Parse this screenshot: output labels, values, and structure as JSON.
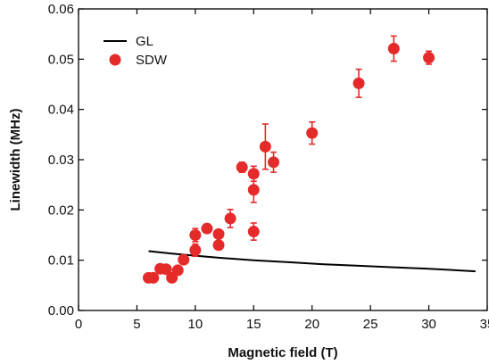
{
  "chart_data": {
    "type": "scatter",
    "title": "",
    "xlabel": "Magnetic field (T)",
    "ylabel": "Linewidth (MHz)",
    "xlim": [
      0,
      35
    ],
    "ylim": [
      0,
      0.06
    ],
    "x_ticks": [
      0,
      5,
      10,
      15,
      20,
      25,
      30,
      35
    ],
    "y_ticks": [
      0.0,
      0.01,
      0.02,
      0.03,
      0.04,
      0.05,
      0.06
    ],
    "x_tick_labels": [
      "0",
      "5",
      "10",
      "15",
      "20",
      "25",
      "30",
      "35"
    ],
    "y_tick_labels": [
      "0.00",
      "0.01",
      "0.02",
      "0.03",
      "0.04",
      "0.05",
      "0.06"
    ],
    "grid": false,
    "legend_position": "top-left",
    "series": [
      {
        "name": "GL",
        "kind": "line",
        "color": "#000000",
        "points": [
          {
            "x": 6,
            "y": 0.0118
          },
          {
            "x": 8,
            "y": 0.0113
          },
          {
            "x": 10,
            "y": 0.0109
          },
          {
            "x": 12,
            "y": 0.0105
          },
          {
            "x": 15,
            "y": 0.01
          },
          {
            "x": 18,
            "y": 0.0096
          },
          {
            "x": 21,
            "y": 0.0092
          },
          {
            "x": 24,
            "y": 0.0089
          },
          {
            "x": 27,
            "y": 0.0086
          },
          {
            "x": 30,
            "y": 0.0083
          },
          {
            "x": 34,
            "y": 0.0078
          }
        ]
      },
      {
        "name": "SDW",
        "kind": "scatter",
        "color": "#e52a2a",
        "points": [
          {
            "x": 6.0,
            "y": 0.0065,
            "err": 0.0004
          },
          {
            "x": 6.4,
            "y": 0.0065,
            "err": 0.0004
          },
          {
            "x": 7.0,
            "y": 0.0083,
            "err": 0.0005
          },
          {
            "x": 7.5,
            "y": 0.0082,
            "err": 0.0005
          },
          {
            "x": 8.0,
            "y": 0.0065,
            "err": 0.0006
          },
          {
            "x": 8.5,
            "y": 0.008,
            "err": 0.0005
          },
          {
            "x": 9.0,
            "y": 0.0101,
            "err": 0.0006
          },
          {
            "x": 10.0,
            "y": 0.012,
            "err": 0.0012
          },
          {
            "x": 10.0,
            "y": 0.015,
            "err": 0.0013
          },
          {
            "x": 11.0,
            "y": 0.0163,
            "err": 0.0005
          },
          {
            "x": 12.0,
            "y": 0.013,
            "err": 0.0008
          },
          {
            "x": 12.0,
            "y": 0.0152,
            "err": 0.0005
          },
          {
            "x": 13.0,
            "y": 0.0183,
            "err": 0.0018
          },
          {
            "x": 14.0,
            "y": 0.0285,
            "err": 0.001
          },
          {
            "x": 15.0,
            "y": 0.0157,
            "err": 0.0017
          },
          {
            "x": 15.0,
            "y": 0.024,
            "err": 0.0025
          },
          {
            "x": 15.0,
            "y": 0.0272,
            "err": 0.0015
          },
          {
            "x": 16.0,
            "y": 0.0326,
            "err": 0.0045
          },
          {
            "x": 16.7,
            "y": 0.0295,
            "err": 0.002
          },
          {
            "x": 20.0,
            "y": 0.0353,
            "err": 0.0022
          },
          {
            "x": 24.0,
            "y": 0.0452,
            "err": 0.0028
          },
          {
            "x": 27.0,
            "y": 0.0521,
            "err": 0.0025
          },
          {
            "x": 30.0,
            "y": 0.0503,
            "err": 0.0013
          }
        ]
      }
    ]
  }
}
